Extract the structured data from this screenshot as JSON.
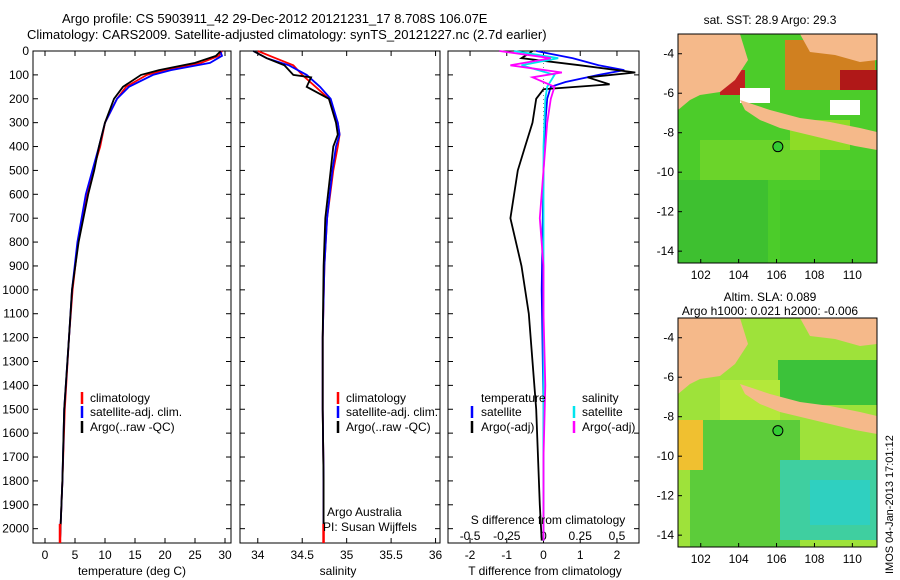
{
  "header": {
    "line1": "Argo profile: CS 5903911_42 29-Dec-2012 20121231_17 8.708S 106.07E",
    "line2": "Climatology: CARS2009. Satellite-adjusted climatology: synTS_20121227.nc (2.7d earlier)"
  },
  "colors": {
    "climatology": "#ff0000",
    "satellite": "#0000ff",
    "argo": "#000000",
    "sal_satellite": "#00e5ee",
    "sal_argo": "#ff00ff",
    "land": "#f5b98a",
    "sea_green": "#33cc33"
  },
  "credit": {
    "org": "Argo Australia",
    "pi": "PI: Susan Wijffels",
    "footer": "IMOS 04-Jan-2013 17:01:12"
  },
  "map_titles": {
    "sst": "sat. SST: 28.9 Argo: 29.3",
    "sla1": "Altim. SLA: 0.089",
    "sla2": "Argo h1000: 0.021 h2000: -0.006"
  },
  "chart_data": [
    {
      "type": "line",
      "name": "temperature-profile",
      "xlabel": "temperature (deg C)",
      "ylabel": "",
      "xlim": [
        -2,
        31
      ],
      "ylim": [
        2060,
        0
      ],
      "xticks": [
        "0",
        "5",
        "10",
        "15",
        "20",
        "25",
        "30"
      ],
      "xtick_values": [
        0,
        5,
        10,
        15,
        20,
        25,
        30
      ],
      "yticks": [
        0,
        100,
        200,
        300,
        400,
        500,
        600,
        700,
        800,
        900,
        1000,
        1100,
        1200,
        1300,
        1400,
        1500,
        1600,
        1700,
        1800,
        1900,
        2000
      ],
      "legend": [
        "climatology",
        "satellite-adj. clim.",
        "Argo(..raw -QC)"
      ],
      "series": [
        {
          "name": "climatology",
          "depth": [
            0,
            20,
            50,
            80,
            100,
            150,
            200,
            300,
            400,
            500,
            600,
            800,
            1000,
            1200,
            1500,
            1800,
            2050
          ],
          "values": [
            29.5,
            29,
            26,
            20,
            17,
            13.5,
            12,
            10,
            9.2,
            8,
            7,
            5.5,
            4.6,
            4,
            3.3,
            2.9,
            2.5
          ]
        },
        {
          "name": "satellite",
          "depth": [
            0,
            20,
            50,
            80,
            100,
            150,
            200,
            300,
            400,
            500,
            600,
            800,
            1000,
            1200,
            1500,
            1800,
            2050
          ],
          "values": [
            29.2,
            29.5,
            27.5,
            21,
            18,
            14,
            12,
            10,
            9,
            7.9,
            6.8,
            5.4,
            4.5,
            4,
            3.2,
            2.9,
            2.5
          ]
        },
        {
          "name": "argo",
          "depth": [
            0,
            20,
            50,
            80,
            100,
            150,
            200,
            300,
            400,
            500,
            600,
            800,
            1000,
            1200,
            1500,
            1800,
            2050
          ],
          "values": [
            29.3,
            28.5,
            25,
            19,
            16,
            13,
            11.5,
            10,
            9,
            8.2,
            7.2,
            5.6,
            4.5,
            4,
            3.2,
            2.9,
            2.5
          ]
        }
      ]
    },
    {
      "type": "line",
      "name": "salinity-profile",
      "xlabel": "salinity",
      "xlim": [
        33.8,
        36.05
      ],
      "ylim": [
        2060,
        0
      ],
      "xticks": [
        "34",
        "34.5",
        "35",
        "35.5",
        "36"
      ],
      "xtick_values": [
        34,
        34.5,
        35,
        35.5,
        36
      ],
      "legend": [
        "climatology",
        "satellite-adj. clim.",
        "Argo(..raw -QC)"
      ],
      "series": [
        {
          "name": "climatology",
          "depth": [
            0,
            30,
            60,
            100,
            150,
            200,
            300,
            350,
            400,
            500,
            700,
            900,
            1200,
            1500,
            1800,
            2050
          ],
          "values": [
            34.0,
            34.2,
            34.4,
            34.5,
            34.65,
            34.8,
            34.9,
            34.92,
            34.9,
            34.85,
            34.78,
            34.75,
            34.73,
            34.73,
            34.74,
            34.74
          ]
        },
        {
          "name": "satellite",
          "depth": [
            0,
            30,
            60,
            100,
            150,
            200,
            300,
            350,
            400,
            500,
            700,
            900,
            1200,
            1500,
            1800,
            2050
          ],
          "values": [
            33.95,
            34.1,
            34.35,
            34.55,
            34.7,
            34.82,
            34.9,
            34.92,
            34.88,
            34.84,
            34.78,
            34.75,
            34.73,
            34.73,
            34.74,
            34.74
          ]
        },
        {
          "name": "argo",
          "depth": [
            0,
            30,
            60,
            100,
            110,
            150,
            200,
            300,
            350,
            400,
            500,
            700,
            900,
            1200,
            1500,
            1800,
            2050
          ],
          "values": [
            33.95,
            34.1,
            34.3,
            34.4,
            34.6,
            34.55,
            34.8,
            34.88,
            34.9,
            34.85,
            34.82,
            34.76,
            34.74,
            34.73,
            34.73,
            34.74,
            34.74
          ]
        }
      ]
    },
    {
      "type": "line",
      "name": "difference-profile",
      "xlabel": "T difference from climatology",
      "top_label": "S difference from climatology",
      "xlim": [
        -2.6,
        2.6
      ],
      "ylim": [
        2060,
        0
      ],
      "xticks": [
        "-2",
        "-1",
        "0",
        "1",
        "2"
      ],
      "xtick_values": [
        -2,
        -1,
        0,
        1,
        2
      ],
      "s_xticks": [
        "-0.5",
        "-0.25",
        "0",
        "0.25",
        "0.5"
      ],
      "s_xtick_values": [
        -2,
        -1,
        0,
        1,
        2
      ],
      "legend_left_title": "temperature",
      "legend_right_title": "salinity",
      "legend_left": [
        "satellite",
        "Argo(-adj)"
      ],
      "legend_right": [
        "satellite",
        "Argo(-adj)"
      ],
      "series": [
        {
          "name": "temp-satellite",
          "depth": [
            0,
            30,
            60,
            80,
            100,
            130,
            150,
            200,
            300,
            500,
            1000,
            1500,
            2000,
            2050
          ],
          "values": [
            -0.2,
            0.8,
            1.5,
            2.2,
            1.5,
            0.6,
            0.2,
            0.1,
            0.05,
            0.0,
            -0.05,
            0.0,
            0.0,
            0.0
          ]
        },
        {
          "name": "temp-argo",
          "depth": [
            0,
            30,
            60,
            90,
            110,
            140,
            160,
            200,
            300,
            400,
            500,
            700,
            900,
            1100,
            1300,
            1500,
            1700,
            1900,
            2050
          ],
          "values": [
            -0.3,
            -0.6,
            1.0,
            2.5,
            1.2,
            1.8,
            0.0,
            -0.2,
            -0.3,
            -0.5,
            -0.7,
            -0.9,
            -0.6,
            -0.4,
            -0.3,
            -0.2,
            -0.15,
            -0.1,
            -0.05
          ]
        },
        {
          "name": "sal-satellite",
          "depth": [
            0,
            30,
            60,
            100,
            150,
            200,
            400,
            800,
            1200,
            1600,
            2050
          ],
          "values": [
            -0.8,
            0.4,
            -0.6,
            0.3,
            0.1,
            0.05,
            0.0,
            0.0,
            0.0,
            0.0,
            0.0
          ]
        },
        {
          "name": "sal-argo",
          "depth": [
            0,
            30,
            60,
            90,
            110,
            150,
            200,
            300,
            500,
            700,
            900,
            1100,
            1400,
            1700,
            2050
          ],
          "values": [
            -1.2,
            0.2,
            -0.9,
            0.5,
            -0.3,
            0.3,
            0.2,
            0.1,
            0.0,
            -0.1,
            0.0,
            0.0,
            0.05,
            0.0,
            0.0
          ]
        }
      ]
    },
    {
      "type": "heatmap",
      "name": "sst-map",
      "title": "sat. SST: 28.9 Argo: 29.3",
      "xticks": [
        "102",
        "104",
        "106",
        "108",
        "110"
      ],
      "xtick_values": [
        102,
        104,
        106,
        108,
        110
      ],
      "yticks": [
        "-4",
        "-6",
        "-8",
        "-10",
        "-12",
        "-14"
      ],
      "ytick_values": [
        -4,
        -6,
        -8,
        -10,
        -12,
        -14
      ],
      "xlim": [
        100.8,
        111.3
      ],
      "ylim": [
        -14.6,
        -3.0
      ],
      "argo_position": [
        106.07,
        -8.708
      ]
    },
    {
      "type": "heatmap",
      "name": "sla-map",
      "title": "Altim. SLA: 0.089",
      "subtitle": "Argo h1000: 0.021 h2000: -0.006",
      "xticks": [
        "102",
        "104",
        "106",
        "108",
        "110"
      ],
      "xtick_values": [
        102,
        104,
        106,
        108,
        110
      ],
      "yticks": [
        "-4",
        "-6",
        "-8",
        "-10",
        "-12",
        "-14"
      ],
      "ytick_values": [
        -4,
        -6,
        -8,
        -10,
        -12,
        -14
      ],
      "xlim": [
        100.8,
        111.3
      ],
      "ylim": [
        -14.6,
        -3.0
      ],
      "argo_position": [
        106.07,
        -8.708
      ]
    }
  ]
}
